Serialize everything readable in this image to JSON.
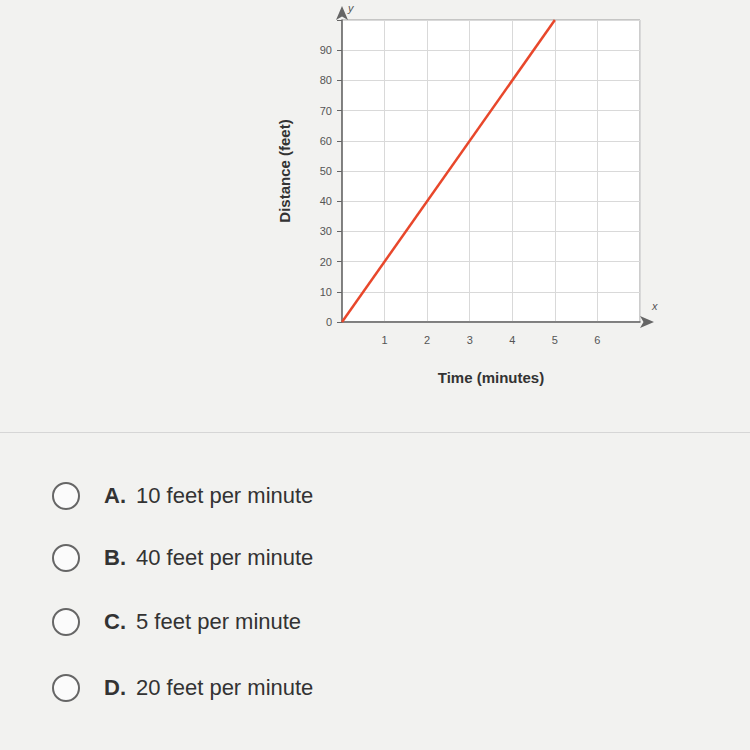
{
  "chart_data": {
    "type": "line",
    "x_label": "Time (minutes)",
    "y_label": "Distance (feet)",
    "axis_symbols": {
      "x": "x",
      "y": "y"
    },
    "x": [
      0,
      5
    ],
    "values": [
      0,
      100
    ],
    "color": "#e8472b",
    "xlim": [
      0,
      7
    ],
    "xticks": [
      1,
      2,
      3,
      4,
      5,
      6
    ],
    "ylim": [
      0,
      100
    ],
    "yticks": [
      0,
      10,
      20,
      30,
      40,
      50,
      60,
      70,
      80,
      90
    ],
    "grid": true
  },
  "answer_choices": [
    {
      "letter": "A.",
      "text": "10 feet per minute"
    },
    {
      "letter": "B.",
      "text": "40 feet per minute"
    },
    {
      "letter": "C.",
      "text": "5 feet per minute"
    },
    {
      "letter": "D.",
      "text": "20 feet per minute"
    }
  ]
}
